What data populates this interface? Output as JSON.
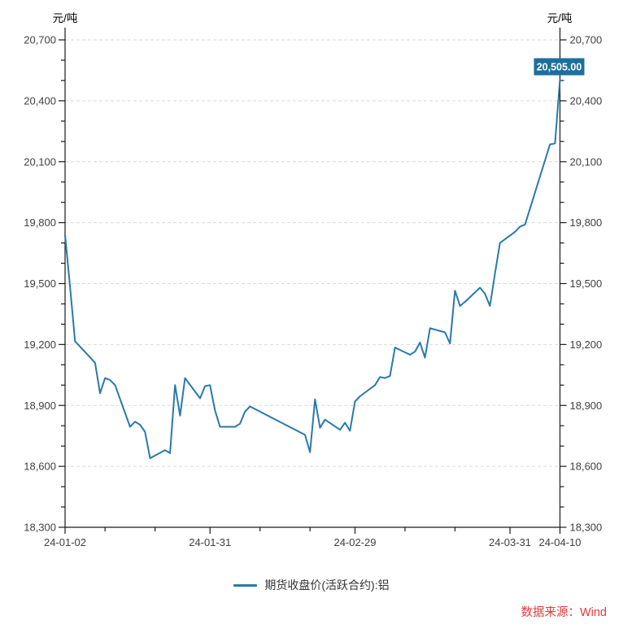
{
  "header": {
    "unit_left": "元/吨",
    "unit_right": "元/吨"
  },
  "legend": {
    "label": "期货收盘价(活跃合约):铝"
  },
  "footer": {
    "source": "数据来源：Wind"
  },
  "latest_price_label": "20,505.00",
  "colors": {
    "line": "#2979AC",
    "price_tag_bg": "#1C6F9C",
    "price_tag_text": "#FFFFFF",
    "grid": "#D9D9D9",
    "axis": "#1A1A1A",
    "tick_text": "#404040",
    "legend_text": "#333333",
    "source_text": "#E23B3B",
    "background": "#FFFFFF"
  },
  "chart_data": {
    "type": "line",
    "title": "期货收盘价(活跃合约):铝",
    "ylabel": "元/吨",
    "ylim": [
      18300,
      20700
    ],
    "y_major_tick_step": 300,
    "y_minor_tick_step": 100,
    "grid": "horizontal-dashed",
    "legend_position": "bottom",
    "x_axis_labels": [
      "24-01-02",
      "24-01-31",
      "24-02-29",
      "24-03-31",
      "24-04-10"
    ],
    "x_major_tick_dates": [
      "2024-01-02",
      "2024-01-31",
      "2024-02-29",
      "2024-03-31",
      "2024-04-10"
    ],
    "x_minor_tick_dates": [
      "2024-01-10",
      "2024-01-20",
      "2024-02-10",
      "2024-02-20",
      "2024-03-10",
      "2024-03-20"
    ],
    "last_point_label": "20,505.00",
    "series": [
      {
        "name": "期货收盘价(活跃合约):铝",
        "color": "#2979AC",
        "dates": [
          "2024-01-02",
          "2024-01-03",
          "2024-01-04",
          "2024-01-05",
          "2024-01-08",
          "2024-01-09",
          "2024-01-10",
          "2024-01-11",
          "2024-01-12",
          "2024-01-15",
          "2024-01-16",
          "2024-01-17",
          "2024-01-18",
          "2024-01-19",
          "2024-01-22",
          "2024-01-23",
          "2024-01-24",
          "2024-01-25",
          "2024-01-26",
          "2024-01-29",
          "2024-01-30",
          "2024-01-31",
          "2024-02-01",
          "2024-02-02",
          "2024-02-05",
          "2024-02-06",
          "2024-02-07",
          "2024-02-08",
          "2024-02-19",
          "2024-02-20",
          "2024-02-21",
          "2024-02-22",
          "2024-02-23",
          "2024-02-26",
          "2024-02-27",
          "2024-02-28",
          "2024-02-29",
          "2024-03-01",
          "2024-03-04",
          "2024-03-05",
          "2024-03-06",
          "2024-03-07",
          "2024-03-08",
          "2024-03-11",
          "2024-03-12",
          "2024-03-13",
          "2024-03-14",
          "2024-03-15",
          "2024-03-18",
          "2024-03-19",
          "2024-03-20",
          "2024-03-21",
          "2024-03-22",
          "2024-03-25",
          "2024-03-26",
          "2024-03-27",
          "2024-03-28",
          "2024-03-29",
          "2024-04-01",
          "2024-04-02",
          "2024-04-03",
          "2024-04-08",
          "2024-04-09",
          "2024-04-10"
        ],
        "values": [
          19740,
          19485,
          19215,
          19190,
          19110,
          18960,
          19035,
          19025,
          19000,
          18795,
          18820,
          18805,
          18770,
          18640,
          18680,
          18665,
          19000,
          18850,
          19035,
          18935,
          18995,
          19000,
          18875,
          18795,
          18795,
          18810,
          18870,
          18895,
          18755,
          18670,
          18930,
          18790,
          18830,
          18780,
          18815,
          18775,
          18920,
          18945,
          19000,
          19040,
          19035,
          19045,
          19185,
          19150,
          19165,
          19210,
          19135,
          19280,
          19260,
          19205,
          19465,
          19390,
          19410,
          19480,
          19450,
          19390,
          19550,
          19700,
          19755,
          19780,
          19790,
          20185,
          20190,
          20505
        ]
      }
    ]
  }
}
